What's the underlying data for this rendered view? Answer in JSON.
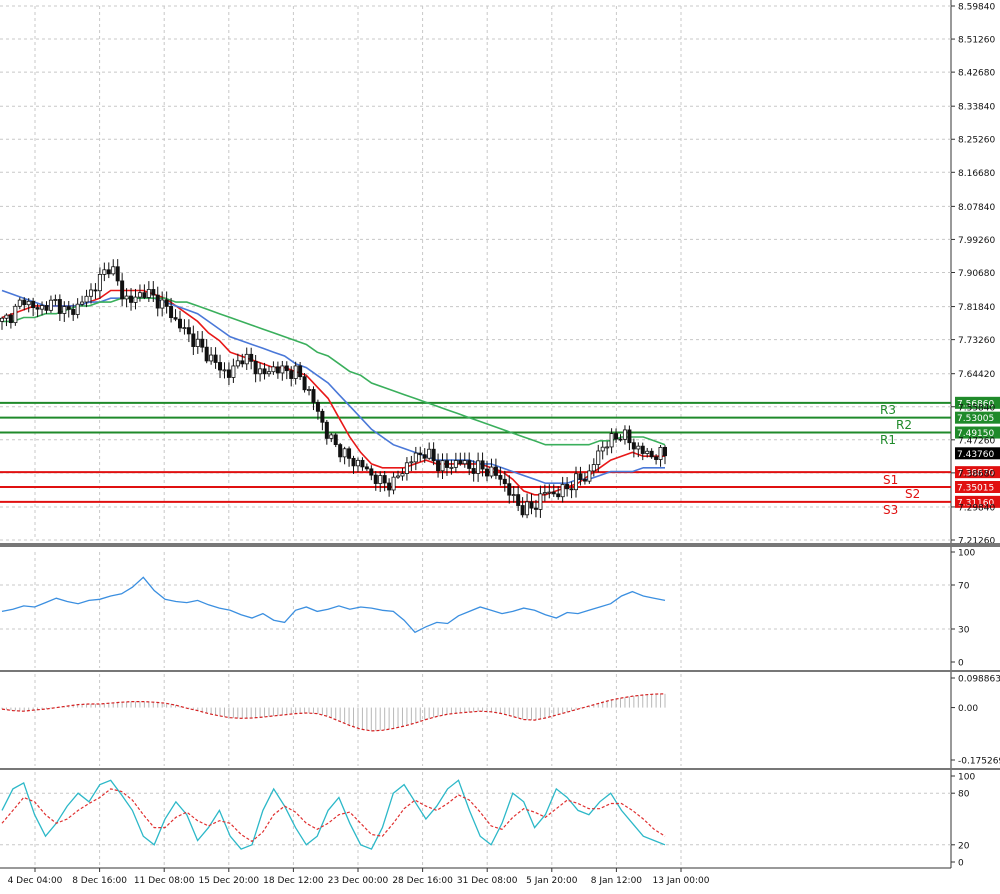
{
  "chart_data": [
    {
      "type": "candlestick",
      "panel": "price",
      "ylim": [
        7.2126,
        8.5984
      ],
      "y_ticks": [
        "8.59840",
        "8.51260",
        "8.42680",
        "8.33840",
        "8.25260",
        "8.16680",
        "8.07840",
        "7.99260",
        "7.90680",
        "7.81840",
        "7.73260",
        "7.64420",
        "7.55840",
        "7.47260",
        "7.38680",
        "7.29840",
        "7.21260"
      ],
      "x_labels": [
        "4 Dec 04:00",
        "8 Dec 16:00",
        "11 Dec 08:00",
        "15 Dec 20:00",
        "18 Dec 12:00",
        "23 Dec 00:00",
        "28 Dec 16:00",
        "31 Dec 08:00",
        "5 Jan 20:00",
        "8 Jan 12:00",
        "13 Jan 00:00"
      ],
      "current_price": {
        "label": "7.43760",
        "value": 7.4376
      },
      "levels": [
        {
          "name": "R3",
          "value": 7.5686,
          "label": "7.56860",
          "type": "resistance"
        },
        {
          "name": "R2",
          "value": 7.53005,
          "label": "7.53005",
          "type": "resistance"
        },
        {
          "name": "R1",
          "value": 7.4915,
          "label": "7.49150",
          "type": "resistance"
        },
        {
          "name": "S1",
          "value": 7.3887,
          "label": "7.38870",
          "type": "support"
        },
        {
          "name": "S2",
          "value": 7.35015,
          "label": "7.35015",
          "type": "support"
        },
        {
          "name": "S3",
          "value": 7.3116,
          "label": "7.31160",
          "type": "support"
        }
      ],
      "close_path": [
        7.78,
        7.8,
        7.84,
        7.81,
        7.82,
        7.83,
        7.8,
        7.82,
        7.85,
        7.89,
        7.93,
        7.85,
        7.83,
        7.86,
        7.84,
        7.82,
        7.78,
        7.75,
        7.72,
        7.69,
        7.66,
        7.64,
        7.69,
        7.67,
        7.64,
        7.66,
        7.65,
        7.65,
        7.61,
        7.55,
        7.48,
        7.45,
        7.42,
        7.41,
        7.38,
        7.36,
        7.36,
        7.4,
        7.43,
        7.44,
        7.41,
        7.4,
        7.42,
        7.4,
        7.4,
        7.39,
        7.37,
        7.32,
        7.29,
        7.3,
        7.34,
        7.33,
        7.35,
        7.37,
        7.38,
        7.45,
        7.47,
        7.49,
        7.46,
        7.44,
        7.43,
        7.4376
      ],
      "overlays": [
        {
          "name": "fast_ma",
          "color": "#e81818",
          "values": [
            7.79,
            7.8,
            7.81,
            7.82,
            7.82,
            7.82,
            7.82,
            7.82,
            7.83,
            7.84,
            7.86,
            7.86,
            7.86,
            7.86,
            7.85,
            7.84,
            7.82,
            7.8,
            7.78,
            7.75,
            7.73,
            7.7,
            7.69,
            7.68,
            7.67,
            7.66,
            7.66,
            7.65,
            7.64,
            7.61,
            7.58,
            7.53,
            7.48,
            7.44,
            7.41,
            7.4,
            7.4,
            7.4,
            7.41,
            7.42,
            7.41,
            7.41,
            7.41,
            7.41,
            7.41,
            7.4,
            7.39,
            7.37,
            7.34,
            7.33,
            7.33,
            7.34,
            7.35,
            7.36,
            7.38,
            7.4,
            7.42,
            7.43,
            7.44,
            7.43,
            7.43,
            7.43
          ]
        },
        {
          "name": "mid_ma",
          "color": "#4a78d8",
          "values": [
            7.86,
            7.85,
            7.84,
            7.83,
            7.82,
            7.82,
            7.82,
            7.82,
            7.83,
            7.83,
            7.84,
            7.84,
            7.84,
            7.84,
            7.84,
            7.83,
            7.82,
            7.81,
            7.8,
            7.78,
            7.76,
            7.74,
            7.73,
            7.72,
            7.71,
            7.7,
            7.69,
            7.67,
            7.66,
            7.64,
            7.62,
            7.59,
            7.56,
            7.53,
            7.5,
            7.48,
            7.46,
            7.45,
            7.44,
            7.43,
            7.42,
            7.42,
            7.42,
            7.42,
            7.41,
            7.41,
            7.4,
            7.39,
            7.38,
            7.37,
            7.36,
            7.36,
            7.36,
            7.37,
            7.37,
            7.38,
            7.39,
            7.39,
            7.39,
            7.4,
            7.4,
            7.4
          ]
        },
        {
          "name": "slow_ma",
          "color": "#3aaf5c",
          "values": [
            7.78,
            7.78,
            7.79,
            7.79,
            7.8,
            7.8,
            7.81,
            7.82,
            7.82,
            7.83,
            7.83,
            7.84,
            7.84,
            7.84,
            7.84,
            7.84,
            7.83,
            7.83,
            7.82,
            7.81,
            7.8,
            7.79,
            7.78,
            7.77,
            7.76,
            7.75,
            7.74,
            7.73,
            7.72,
            7.7,
            7.69,
            7.67,
            7.65,
            7.64,
            7.62,
            7.61,
            7.6,
            7.59,
            7.58,
            7.57,
            7.56,
            7.55,
            7.54,
            7.53,
            7.52,
            7.51,
            7.5,
            7.49,
            7.48,
            7.47,
            7.46,
            7.46,
            7.46,
            7.46,
            7.46,
            7.47,
            7.47,
            7.48,
            7.48,
            7.48,
            7.47,
            7.46
          ]
        }
      ]
    },
    {
      "type": "line",
      "panel": "oscillator_1",
      "ylim": [
        0,
        100
      ],
      "y_ticks": [
        "100",
        "70",
        "30",
        "0"
      ],
      "color": "#3b8fe0",
      "values": [
        46,
        48,
        51,
        50,
        54,
        58,
        55,
        53,
        56,
        57,
        60,
        62,
        68,
        77,
        65,
        57,
        55,
        54,
        56,
        52,
        49,
        47,
        43,
        40,
        44,
        38,
        36,
        47,
        50,
        46,
        48,
        51,
        48,
        50,
        49,
        47,
        46,
        38,
        27,
        32,
        36,
        35,
        42,
        46,
        50,
        47,
        44,
        46,
        49,
        47,
        43,
        40,
        45,
        44,
        47,
        50,
        53,
        60,
        64,
        60,
        58,
        56
      ]
    },
    {
      "type": "bar",
      "panel": "oscillator_2",
      "ylim": [
        -0.175269,
        0.098863
      ],
      "y_ticks": [
        "0.098863",
        "0.00",
        "-0.175269"
      ],
      "signal_color": "#d42020",
      "bar_color": "#b8b8b8",
      "values": [
        -0.005,
        -0.01,
        -0.012,
        -0.008,
        -0.005,
        0.0,
        0.005,
        0.01,
        0.012,
        0.012,
        0.015,
        0.018,
        0.02,
        0.02,
        0.018,
        0.015,
        0.008,
        -0.002,
        -0.01,
        -0.02,
        -0.028,
        -0.034,
        -0.036,
        -0.035,
        -0.032,
        -0.028,
        -0.024,
        -0.02,
        -0.018,
        -0.02,
        -0.03,
        -0.045,
        -0.06,
        -0.072,
        -0.078,
        -0.076,
        -0.07,
        -0.062,
        -0.052,
        -0.04,
        -0.03,
        -0.022,
        -0.018,
        -0.015,
        -0.012,
        -0.014,
        -0.02,
        -0.03,
        -0.04,
        -0.042,
        -0.035,
        -0.025,
        -0.015,
        -0.005,
        0.005,
        0.015,
        0.025,
        0.032,
        0.038,
        0.042,
        0.045,
        0.046
      ]
    },
    {
      "type": "line",
      "panel": "oscillator_3",
      "ylim": [
        0,
        100
      ],
      "y_ticks": [
        "100",
        "80",
        "20",
        "0"
      ],
      "series": [
        {
          "color": "#2cb8c8",
          "values": [
            60,
            85,
            92,
            55,
            30,
            45,
            65,
            80,
            70,
            90,
            95,
            78,
            60,
            30,
            20,
            50,
            70,
            55,
            25,
            40,
            60,
            30,
            15,
            20,
            60,
            85,
            65,
            40,
            20,
            30,
            60,
            75,
            45,
            20,
            15,
            40,
            80,
            90,
            70,
            50,
            65,
            85,
            95,
            60,
            30,
            20,
            45,
            80,
            70,
            40,
            55,
            85,
            75,
            60,
            55,
            70,
            80,
            60,
            45,
            30,
            25,
            20
          ]
        },
        {
          "color": "#e03030",
          "values": [
            45,
            60,
            75,
            70,
            55,
            45,
            50,
            60,
            68,
            75,
            85,
            82,
            72,
            55,
            40,
            40,
            52,
            58,
            48,
            42,
            48,
            45,
            32,
            24,
            35,
            55,
            65,
            58,
            45,
            38,
            45,
            55,
            58,
            45,
            32,
            30,
            45,
            62,
            72,
            65,
            60,
            68,
            78,
            72,
            58,
            42,
            38,
            52,
            62,
            58,
            52,
            62,
            72,
            68,
            62,
            62,
            68,
            68,
            60,
            50,
            38,
            30
          ]
        }
      ]
    }
  ]
}
